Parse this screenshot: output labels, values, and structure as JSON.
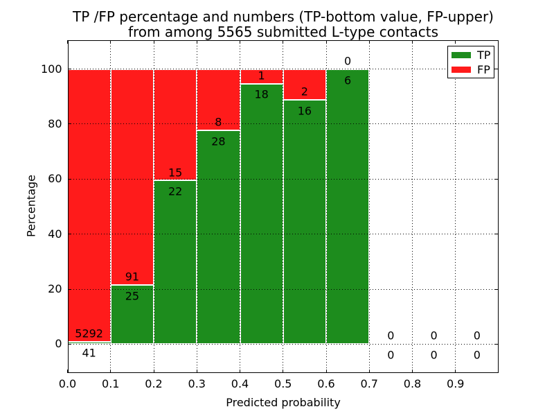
{
  "chart_data": {
    "type": "bar",
    "stacked": true,
    "title_line1": "TP /FP percentage and numbers (TP-bottom value, FP-upper)",
    "title_line2": "from among 5565 submitted L-type contacts",
    "title": "TP /FP percentage and numbers (TP-bottom value, FP-upper)\nfrom among 5565 submitted L-type contacts",
    "xlabel": "Predicted probability",
    "ylabel": "Percentage",
    "total_submitted_contacts": 5565,
    "bin_width": 0.1,
    "bin_starts": [
      0.0,
      0.1,
      0.2,
      0.3,
      0.4,
      0.5,
      0.6,
      0.7,
      0.8,
      0.9
    ],
    "series": [
      {
        "name": "TP",
        "color": "#1d8c1d",
        "counts": [
          41,
          25,
          22,
          28,
          18,
          16,
          6,
          0,
          0,
          0
        ]
      },
      {
        "name": "FP",
        "color": "#ff1b1b",
        "counts": [
          5292,
          91,
          15,
          8,
          1,
          2,
          0,
          0,
          0,
          0
        ]
      }
    ],
    "tp_percent_by_bin": [
      0.77,
      21.55,
      59.46,
      77.78,
      94.74,
      88.89,
      100.0,
      0.0,
      0.0,
      0.0
    ],
    "x_ticks": [
      "0.0",
      "0.1",
      "0.2",
      "0.3",
      "0.4",
      "0.5",
      "0.6",
      "0.7",
      "0.8",
      "0.9"
    ],
    "y_ticks": [
      "0",
      "20",
      "40",
      "60",
      "80",
      "100"
    ],
    "xlim": [
      0.0,
      1.0
    ],
    "ylim": [
      -10.5,
      110.5
    ],
    "grid": true,
    "grid_style": "dotted",
    "bar_edge_color": "#ffffff",
    "legend": {
      "position": "upper right",
      "entries": [
        {
          "label": "TP",
          "color": "#1d8c1d"
        },
        {
          "label": "FP",
          "color": "#ff1b1b"
        }
      ]
    }
  }
}
